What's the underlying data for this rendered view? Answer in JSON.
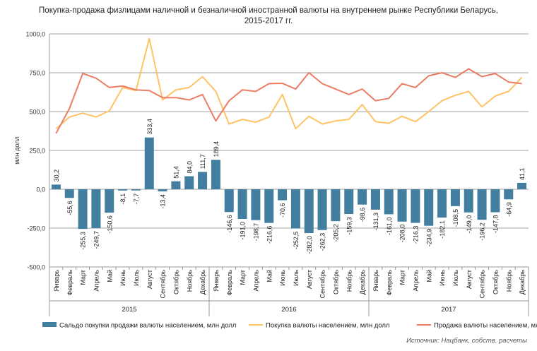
{
  "chart_data": {
    "type": "bar+line",
    "title": "Покупка-продажа физлицами наличной и безналичной иностранной валюты на внутреннем рынке Республики Беларусь,",
    "subtitle": "2015-2017 гг.",
    "ylabel": "млн долл",
    "xlabel": "",
    "ylim": [
      -500,
      1000
    ],
    "yticks": [
      "-500,0",
      "-250,0",
      "0,0",
      "250,0",
      "500,0",
      "750,0",
      "1000,0"
    ],
    "ytick_values": [
      -500,
      -250,
      0,
      250,
      500,
      750,
      1000
    ],
    "grid": true,
    "legend_position": "bottom",
    "months": [
      "Январь",
      "Февраль",
      "Март",
      "Апрель",
      "Май",
      "Июнь",
      "Июль",
      "Август",
      "Сентябрь",
      "Октябрь",
      "Ноябрь",
      "Декабрь"
    ],
    "years": [
      "2015",
      "2016",
      "2017"
    ],
    "series": [
      {
        "name": "Сальдо покупки продажи валюты населением, млн долл",
        "type": "bar",
        "color": "#417E9F",
        "values": [
          30.2,
          -55.6,
          -255.3,
          -249.7,
          -150.6,
          -8.1,
          -7.7,
          333.4,
          -13.4,
          51.4,
          84.0,
          111.7,
          189.4,
          -146.6,
          -191.0,
          -198.7,
          -216.6,
          -70.6,
          -252.5,
          -282.0,
          -262.3,
          -205.2,
          -159.3,
          -98.6,
          -131.3,
          -161.0,
          -208.0,
          -216.3,
          -234.9,
          -182.1,
          -108.5,
          -149.0,
          -196.2,
          -147.8,
          -64.9,
          41.1
        ],
        "labels": [
          "30,2",
          "-55,6",
          "-255,3",
          "-249,7",
          "-150,6",
          "-8,1",
          "-7,7",
          "333,4",
          "-13,4",
          "51,4",
          "84,0",
          "111,7",
          "189,4",
          "-146,6",
          "-191,0",
          "-198,7",
          "-216,6",
          "-70,6",
          "-252,5",
          "-282,0",
          "-262,3",
          "-205,2",
          "-159,3",
          "-98,6",
          "-131,3",
          "-161,0",
          "-208,0",
          "-216,3",
          "-234,9",
          "-182,1",
          "-108,5",
          "-149,0",
          "-196,2",
          "-147,8",
          "-64,9",
          "41,1"
        ]
      },
      {
        "name": "Покупка валюты населением, млн долл",
        "type": "line",
        "color": "#FFC363",
        "values": [
          390,
          465,
          490,
          465,
          505,
          655,
          635,
          970,
          575,
          640,
          655,
          725,
          630,
          420,
          450,
          432,
          465,
          610,
          390,
          470,
          420,
          440,
          450,
          545,
          435,
          425,
          470,
          435,
          500,
          570,
          605,
          630,
          530,
          600,
          630,
          720
        ]
      },
      {
        "name": "Продажа валюты населением, млн долл",
        "type": "line",
        "color": "#EB7D64",
        "values": [
          360,
          520,
          745,
          715,
          655,
          665,
          640,
          635,
          590,
          590,
          575,
          610,
          440,
          570,
          640,
          630,
          680,
          682,
          645,
          750,
          680,
          645,
          610,
          645,
          570,
          585,
          680,
          655,
          730,
          750,
          720,
          775,
          725,
          745,
          690,
          680
        ]
      }
    ]
  },
  "source": "Источник: Нацбанк, собств. расчеты"
}
